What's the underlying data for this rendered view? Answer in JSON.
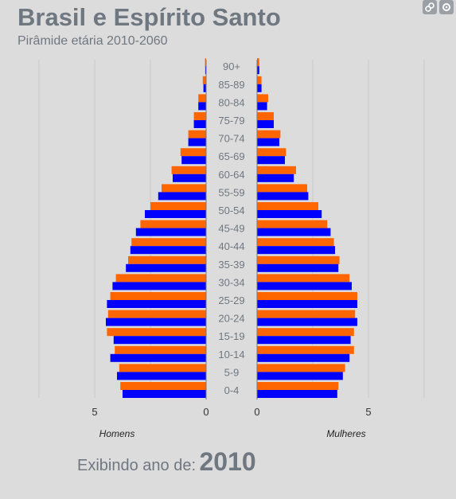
{
  "header": {
    "title": "Brasil e Espírito Santo",
    "subtitle": "Pirâmide etária 2010-2060"
  },
  "toolbar": {
    "icons": [
      "link-icon",
      "settings-icon"
    ]
  },
  "footer": {
    "label": "Exibindo ano de:",
    "year": "2010"
  },
  "colors": {
    "series_a": "#ff6600",
    "series_b": "#0000ff",
    "background": "#dcdcdc",
    "grid": "#c8c8c8",
    "text": "#6f7780"
  },
  "chart_data": {
    "type": "bar",
    "orientation": "horizontal",
    "categories": [
      "0-4",
      "5-9",
      "10-14",
      "15-19",
      "20-24",
      "25-29",
      "30-34",
      "35-39",
      "40-44",
      "45-49",
      "50-54",
      "55-59",
      "60-64",
      "65-69",
      "70-74",
      "75-79",
      "80-84",
      "85-89",
      "90+"
    ],
    "left_axis_label": "Homens",
    "right_axis_label": "Mulheres",
    "left_ticks": [
      "5",
      "0"
    ],
    "right_ticks": [
      "0",
      "5"
    ],
    "xlim": [
      0,
      7.5
    ],
    "grid": true,
    "series": [
      {
        "side": "left",
        "color": "#ff6600",
        "values": [
          3.85,
          3.9,
          4.1,
          4.45,
          4.4,
          4.3,
          4.05,
          3.5,
          3.35,
          2.95,
          2.5,
          2.0,
          1.55,
          1.15,
          0.8,
          0.55,
          0.35,
          0.15,
          0.05
        ]
      },
      {
        "side": "left",
        "color": "#0000ff",
        "values": [
          3.75,
          4.0,
          4.3,
          4.15,
          4.5,
          4.45,
          4.2,
          3.6,
          3.4,
          3.15,
          2.75,
          2.15,
          1.5,
          1.1,
          0.8,
          0.55,
          0.35,
          0.12,
          0.04
        ]
      },
      {
        "side": "right",
        "color": "#ff6600",
        "values": [
          3.65,
          3.95,
          4.35,
          4.35,
          4.4,
          4.5,
          4.15,
          3.7,
          3.45,
          3.15,
          2.75,
          2.25,
          1.75,
          1.3,
          1.05,
          0.75,
          0.5,
          0.2,
          0.1
        ]
      },
      {
        "side": "right",
        "color": "#0000ff",
        "values": [
          3.6,
          3.85,
          4.15,
          4.2,
          4.5,
          4.5,
          4.25,
          3.65,
          3.5,
          3.3,
          2.9,
          2.3,
          1.65,
          1.25,
          1.0,
          0.75,
          0.45,
          0.2,
          0.1
        ]
      }
    ]
  }
}
